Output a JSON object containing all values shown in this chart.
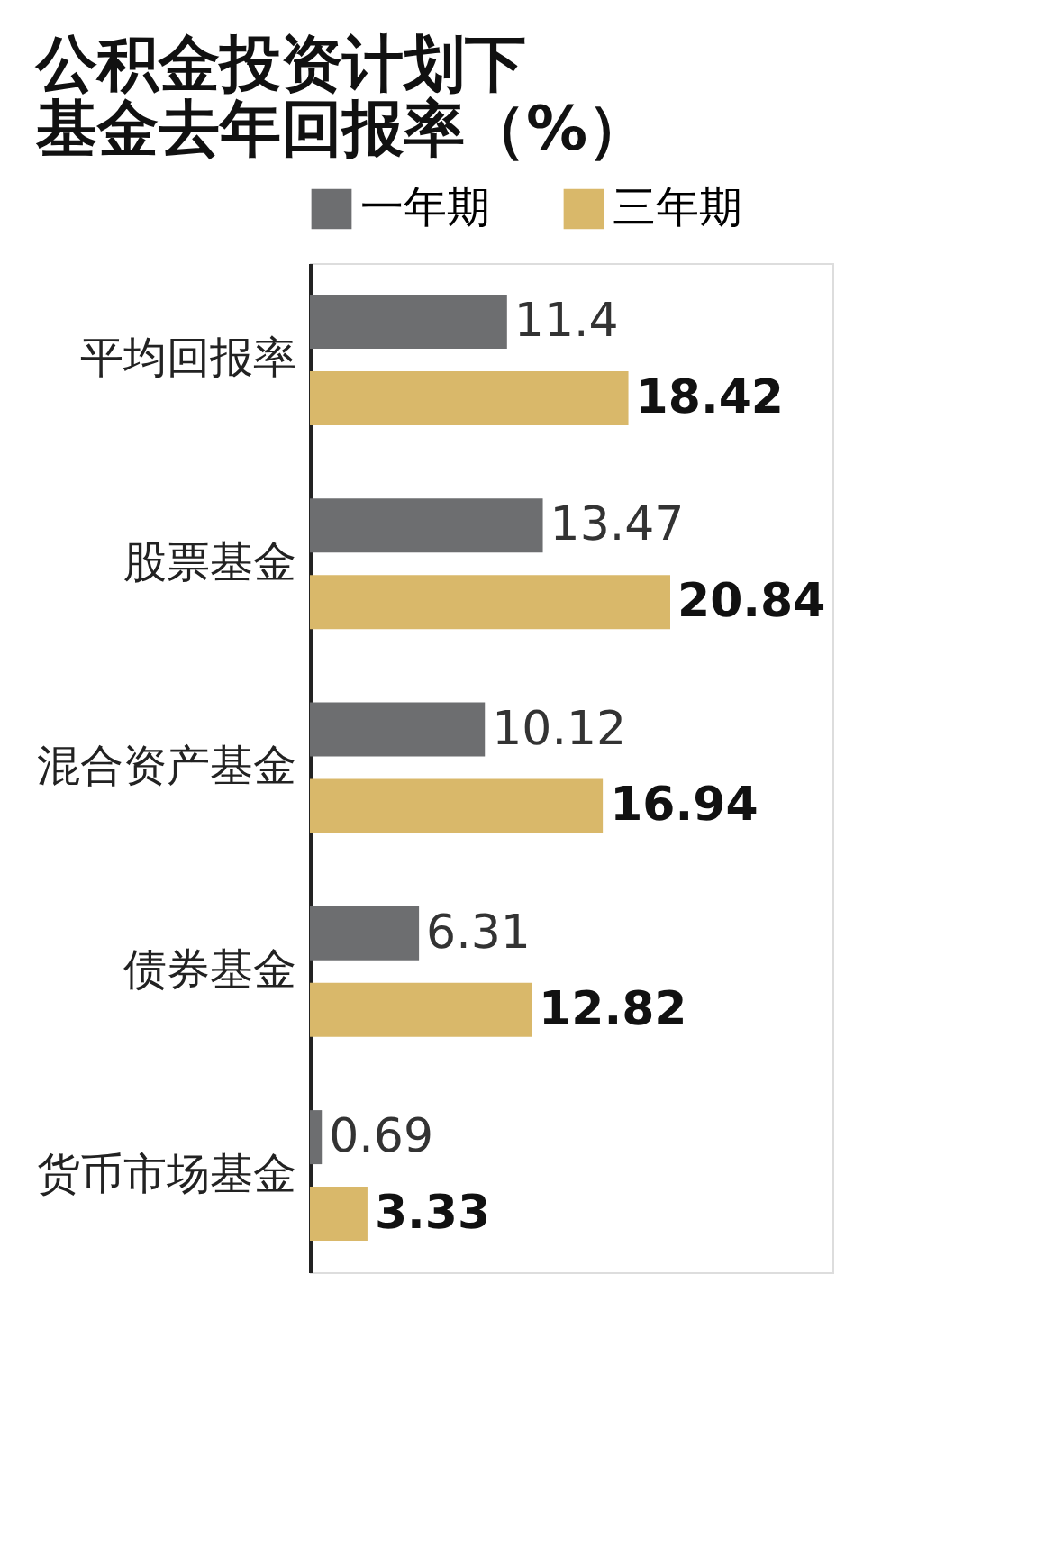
{
  "chart_data": {
    "type": "bar",
    "orientation": "horizontal",
    "title": [
      "公积金投资计划下",
      "基金去年回报率（%）"
    ],
    "categories": [
      "平均回报率",
      "股票基金",
      "混合资产基金",
      "债券基金",
      "货币市场基金"
    ],
    "series": [
      {
        "name": "一年期",
        "color": "#6d6e70",
        "values": [
          11.4,
          13.47,
          10.12,
          6.31,
          0.69
        ]
      },
      {
        "name": "三年期",
        "color": "#d9b86a",
        "values": [
          18.42,
          20.84,
          16.94,
          12.82,
          3.33
        ]
      }
    ],
    "data_labels": true,
    "legend": "top"
  }
}
